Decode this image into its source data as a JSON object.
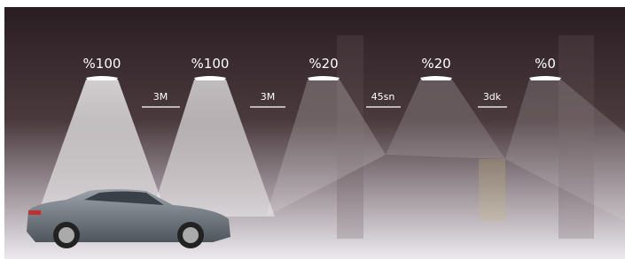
{
  "lamps": [
    {
      "label": "%100"
    },
    {
      "label": "%100"
    },
    {
      "label": "%20"
    },
    {
      "label": "%20"
    },
    {
      "label": "%0"
    }
  ],
  "gaps": [
    {
      "label": "3M"
    },
    {
      "label": "3M"
    },
    {
      "label": "45sn"
    },
    {
      "label": "3dk"
    }
  ]
}
